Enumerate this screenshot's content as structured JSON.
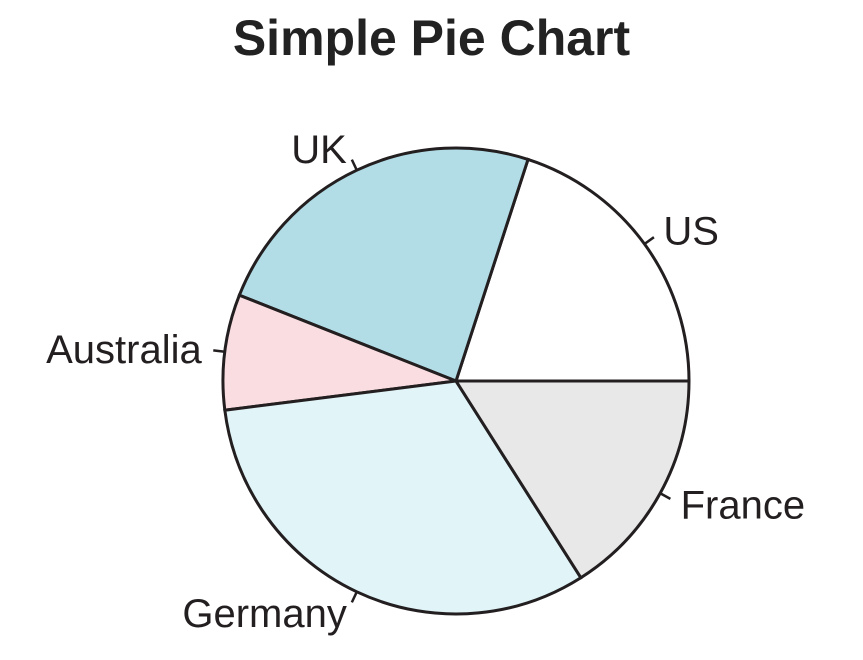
{
  "chart_data": {
    "type": "pie",
    "title": "Simple Pie Chart",
    "categories": [
      "US",
      "UK",
      "Australia",
      "Germany",
      "France"
    ],
    "values": [
      20,
      24,
      8,
      32,
      16
    ],
    "colors": [
      "#ffffff",
      "#b2dde6",
      "#fadde1",
      "#e1f4f8",
      "#e8e8e8"
    ],
    "start_angle_deg": 0,
    "direction": "counterclockwise"
  }
}
